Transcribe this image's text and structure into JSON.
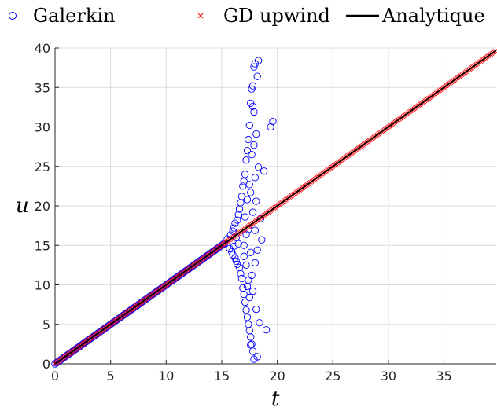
{
  "chart_data": {
    "type": "scatter",
    "xlabel": "t",
    "ylabel": "u",
    "xlim": [
      0,
      39.7
    ],
    "ylim": [
      0,
      40
    ],
    "xticks": [
      "0",
      "5",
      "10",
      "15",
      "20",
      "25",
      "30",
      "35"
    ],
    "yticks": [
      "0",
      "5",
      "10",
      "15",
      "20",
      "25",
      "30",
      "35",
      "40"
    ],
    "grid": true,
    "legend": {
      "placement": "top",
      "entries": [
        "Galerkin",
        "GD upwind",
        "Analytique"
      ]
    },
    "series": [
      {
        "name": "Galerkin",
        "marker": "circle-open",
        "color": "#0000ff",
        "stable": {
          "x_start": 0,
          "x_end": 15.3,
          "slope": 1
        },
        "scattered_points": [
          [
            15.5,
            15.8
          ],
          [
            15.7,
            14.6
          ],
          [
            15.8,
            16.3
          ],
          [
            15.9,
            14.2
          ],
          [
            16.0,
            16.8
          ],
          [
            16.0,
            13.8
          ],
          [
            16.1,
            17.2
          ],
          [
            16.1,
            14.9
          ],
          [
            16.2,
            13.4
          ],
          [
            16.2,
            17.8
          ],
          [
            16.3,
            16.0
          ],
          [
            16.3,
            13.0
          ],
          [
            16.4,
            18.2
          ],
          [
            16.4,
            12.6
          ],
          [
            16.5,
            18.9
          ],
          [
            16.5,
            15.2
          ],
          [
            16.6,
            12.2
          ],
          [
            16.6,
            19.6
          ],
          [
            16.7,
            11.4
          ],
          [
            16.7,
            20.4
          ],
          [
            16.8,
            10.8
          ],
          [
            16.8,
            21.2
          ],
          [
            16.9,
            9.6
          ],
          [
            16.9,
            22.5
          ],
          [
            17.0,
            8.8
          ],
          [
            17.0,
            23.1
          ],
          [
            17.0,
            13.6
          ],
          [
            17.1,
            24.0
          ],
          [
            17.1,
            7.8
          ],
          [
            17.1,
            18.6
          ],
          [
            17.2,
            25.8
          ],
          [
            17.2,
            6.8
          ],
          [
            17.2,
            12.5
          ],
          [
            17.3,
            27.0
          ],
          [
            17.3,
            5.9
          ],
          [
            17.3,
            20.8
          ],
          [
            17.4,
            28.4
          ],
          [
            17.4,
            5.0
          ],
          [
            17.4,
            10.6
          ],
          [
            17.5,
            30.2
          ],
          [
            17.5,
            4.2
          ],
          [
            17.5,
            22.7
          ],
          [
            17.6,
            33.0
          ],
          [
            17.6,
            3.4
          ],
          [
            17.6,
            14.1
          ],
          [
            17.7,
            34.8
          ],
          [
            17.7,
            2.5
          ],
          [
            17.7,
            26.5
          ],
          [
            17.8,
            35.2
          ],
          [
            17.8,
            1.6
          ],
          [
            17.8,
            9.2
          ],
          [
            17.9,
            37.6
          ],
          [
            17.9,
            0.6
          ],
          [
            17.9,
            31.9
          ],
          [
            18.0,
            38.0
          ],
          [
            18.0,
            12.8
          ],
          [
            18.1,
            29.1
          ],
          [
            18.1,
            6.9
          ],
          [
            18.2,
            36.4
          ],
          [
            18.2,
            0.9
          ],
          [
            18.3,
            38.4
          ],
          [
            18.3,
            24.9
          ],
          [
            18.4,
            5.2
          ],
          [
            18.5,
            18.4
          ],
          [
            18.6,
            15.7
          ],
          [
            18.8,
            24.4
          ],
          [
            19.0,
            4.3
          ],
          [
            19.4,
            30.0
          ],
          [
            19.6,
            30.7
          ],
          [
            17.0,
            15.0
          ],
          [
            17.2,
            16.4
          ],
          [
            17.4,
            17.0
          ],
          [
            17.6,
            21.7
          ],
          [
            17.8,
            19.2
          ],
          [
            18.0,
            23.6
          ],
          [
            18.0,
            16.9
          ],
          [
            17.7,
            11.2
          ],
          [
            17.5,
            8.4
          ],
          [
            17.3,
            9.8
          ],
          [
            17.9,
            27.7
          ],
          [
            18.1,
            20.6
          ],
          [
            17.6,
            2.4
          ],
          [
            17.8,
            32.6
          ],
          [
            18.2,
            14.4
          ]
        ]
      },
      {
        "name": "GD upwind",
        "marker": "x",
        "color": "#ff0000",
        "x_start": 0,
        "x_end": 39.7,
        "slope": 1
      },
      {
        "name": "Analytique",
        "marker": "line",
        "color": "#000000",
        "x": [
          0,
          39.7
        ],
        "y": [
          0,
          39.7
        ]
      }
    ]
  }
}
